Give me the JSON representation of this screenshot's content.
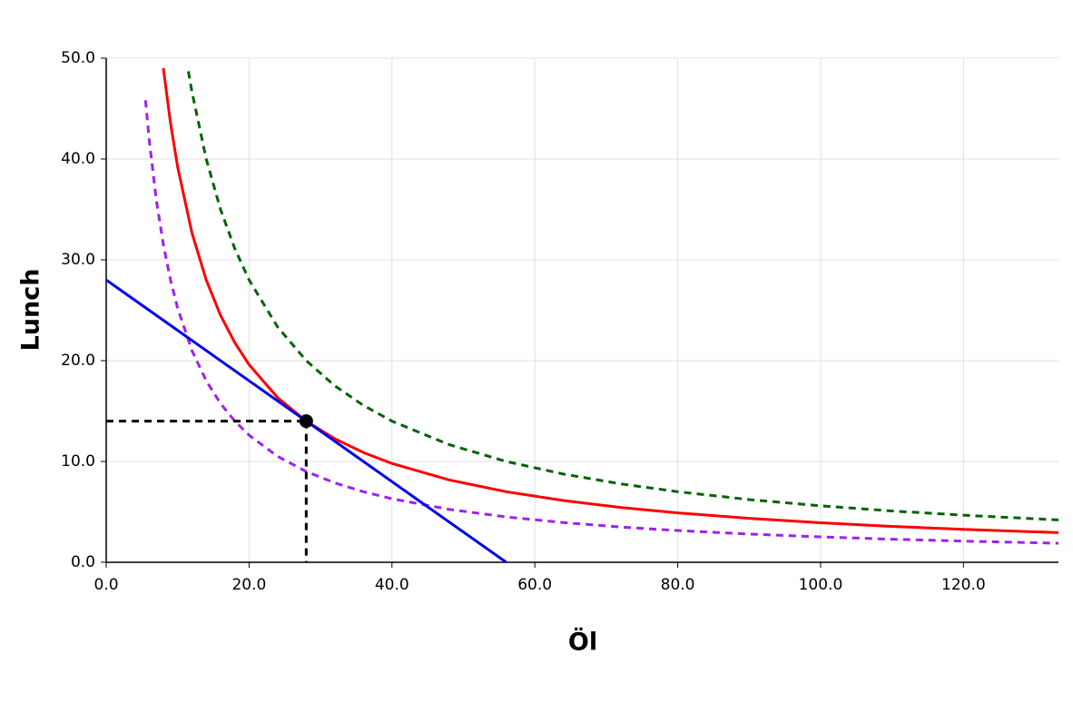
{
  "chart_data": {
    "type": "line",
    "xlabel": "Öl",
    "ylabel": "Lunch",
    "xlim": [
      0,
      133.3
    ],
    "ylim": [
      0,
      50
    ],
    "xticks": [
      {
        "value": 0,
        "label": "0.0"
      },
      {
        "value": 20,
        "label": "20.0"
      },
      {
        "value": 40,
        "label": "40.0"
      },
      {
        "value": 60,
        "label": "60.0"
      },
      {
        "value": 80,
        "label": "80.0"
      },
      {
        "value": 100,
        "label": "100.0"
      },
      {
        "value": 120,
        "label": "120.0"
      }
    ],
    "yticks": [
      {
        "value": 0,
        "label": "0.0"
      },
      {
        "value": 10,
        "label": "10.0"
      },
      {
        "value": 20,
        "label": "20.0"
      },
      {
        "value": 30,
        "label": "30.0"
      },
      {
        "value": 40,
        "label": "40.0"
      },
      {
        "value": 50,
        "label": "50.0"
      }
    ],
    "grid": true,
    "series": [
      {
        "color": "#a020f0",
        "dash": true,
        "x": [
          5.5,
          6,
          7,
          8,
          9,
          10,
          12,
          14,
          16,
          18,
          20,
          24,
          28,
          32,
          36,
          40,
          48,
          56,
          64,
          72,
          80,
          90,
          100,
          110,
          120,
          133.3
        ],
        "values": [
          45.82,
          42,
          36,
          31.5,
          28,
          25.2,
          21,
          18,
          15.75,
          14,
          12.6,
          10.5,
          9,
          7.875,
          7,
          6.3,
          5.25,
          4.5,
          3.94,
          3.5,
          3.15,
          2.8,
          2.52,
          2.29,
          2.1,
          1.89
        ]
      },
      {
        "color": "#006400",
        "dash": true,
        "x": [
          11.5,
          12,
          14,
          16,
          18,
          20,
          24,
          28,
          32,
          36,
          40,
          48,
          56,
          64,
          72,
          80,
          90,
          100,
          110,
          120,
          133.3
        ],
        "values": [
          48.7,
          46.67,
          40,
          35,
          31.11,
          28,
          23.33,
          20,
          17.5,
          15.56,
          14,
          11.67,
          10,
          8.75,
          7.78,
          7,
          6.22,
          5.6,
          5.09,
          4.67,
          4.2
        ]
      },
      {
        "color": "#ff0000",
        "dash": false,
        "x": [
          8,
          9,
          10,
          12,
          14,
          16,
          18,
          20,
          24,
          28,
          32,
          36,
          40,
          48,
          56,
          64,
          72,
          80,
          90,
          100,
          110,
          120,
          133.3
        ],
        "values": [
          49,
          43.56,
          39.2,
          32.67,
          28,
          24.5,
          21.78,
          19.6,
          16.33,
          14,
          12.25,
          10.89,
          9.8,
          8.17,
          7,
          6.125,
          5.44,
          4.9,
          4.36,
          3.92,
          3.56,
          3.27,
          2.94
        ]
      },
      {
        "color": "#0000ee",
        "dash": false,
        "x": [
          0,
          56
        ],
        "values": [
          28,
          0
        ]
      },
      {
        "color": "#000000",
        "dash": true,
        "x": [
          0,
          28
        ],
        "values": [
          14,
          14
        ]
      },
      {
        "color": "#000000",
        "dash": true,
        "x": [
          28,
          28
        ],
        "values": [
          14,
          0
        ]
      },
      {
        "color": "#000000",
        "dash": false,
        "marker": true,
        "x": [
          28
        ],
        "values": [
          14
        ]
      }
    ]
  }
}
